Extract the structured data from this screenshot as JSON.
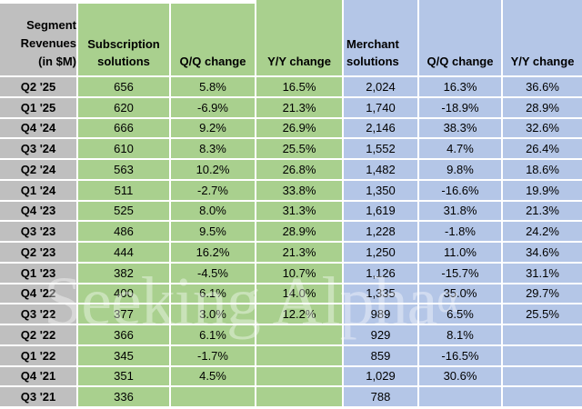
{
  "colors": {
    "gray": "#bfbfbf",
    "green": "#a9d08e",
    "blue": "#b4c6e7",
    "gridline": "#ffffff",
    "text": "#000000",
    "watermark": "rgba(255,255,255,0.38)"
  },
  "table": {
    "corner_lines": [
      "Segment",
      "Revenues",
      "(in $M)"
    ],
    "col_headers": [
      "Subscription solutions",
      "Q/Q change",
      "Y/Y change",
      "Merchant solutions",
      "Q/Q change",
      "Y/Y change"
    ]
  },
  "watermark": {
    "text": "Seeking Alpha",
    "symbol": "α"
  },
  "chart_data": {
    "type": "table",
    "title": "Segment Revenues (in $M)",
    "columns": [
      "Segment Revenues (in $M)",
      "Subscription solutions",
      "Q/Q change",
      "Y/Y change",
      "Merchant solutions",
      "Q/Q change",
      "Y/Y change"
    ],
    "rows": [
      [
        "Q2 '25",
        "656",
        "5.8%",
        "16.5%",
        "2,024",
        "16.3%",
        "36.6%"
      ],
      [
        "Q1 '25",
        "620",
        "-6.9%",
        "21.3%",
        "1,740",
        "-18.9%",
        "28.9%"
      ],
      [
        "Q4 '24",
        "666",
        "9.2%",
        "26.9%",
        "2,146",
        "38.3%",
        "32.6%"
      ],
      [
        "Q3 '24",
        "610",
        "8.3%",
        "25.5%",
        "1,552",
        "4.7%",
        "26.4%"
      ],
      [
        "Q2 '24",
        "563",
        "10.2%",
        "26.8%",
        "1,482",
        "9.8%",
        "18.6%"
      ],
      [
        "Q1 '24",
        "511",
        "-2.7%",
        "33.8%",
        "1,350",
        "-16.6%",
        "19.9%"
      ],
      [
        "Q4 '23",
        "525",
        "8.0%",
        "31.3%",
        "1,619",
        "31.8%",
        "21.3%"
      ],
      [
        "Q3 '23",
        "486",
        "9.5%",
        "28.9%",
        "1,228",
        "-1.8%",
        "24.2%"
      ],
      [
        "Q2 '23",
        "444",
        "16.2%",
        "21.3%",
        "1,250",
        "11.0%",
        "34.6%"
      ],
      [
        "Q1 '23",
        "382",
        "-4.5%",
        "10.7%",
        "1,126",
        "-15.7%",
        "31.1%"
      ],
      [
        "Q4 '22",
        "400",
        "6.1%",
        "14.0%",
        "1,335",
        "35.0%",
        "29.7%"
      ],
      [
        "Q3 '22",
        "377",
        "3.0%",
        "12.2%",
        "989",
        "6.5%",
        "25.5%"
      ],
      [
        "Q2 '22",
        "366",
        "6.1%",
        "",
        "929",
        "8.1%",
        ""
      ],
      [
        "Q1 '22",
        "345",
        "-1.7%",
        "",
        "859",
        "-16.5%",
        ""
      ],
      [
        "Q4 '21",
        "351",
        "4.5%",
        "",
        "1,029",
        "30.6%",
        ""
      ],
      [
        "Q3 '21",
        "336",
        "",
        "",
        "788",
        "",
        ""
      ]
    ]
  }
}
